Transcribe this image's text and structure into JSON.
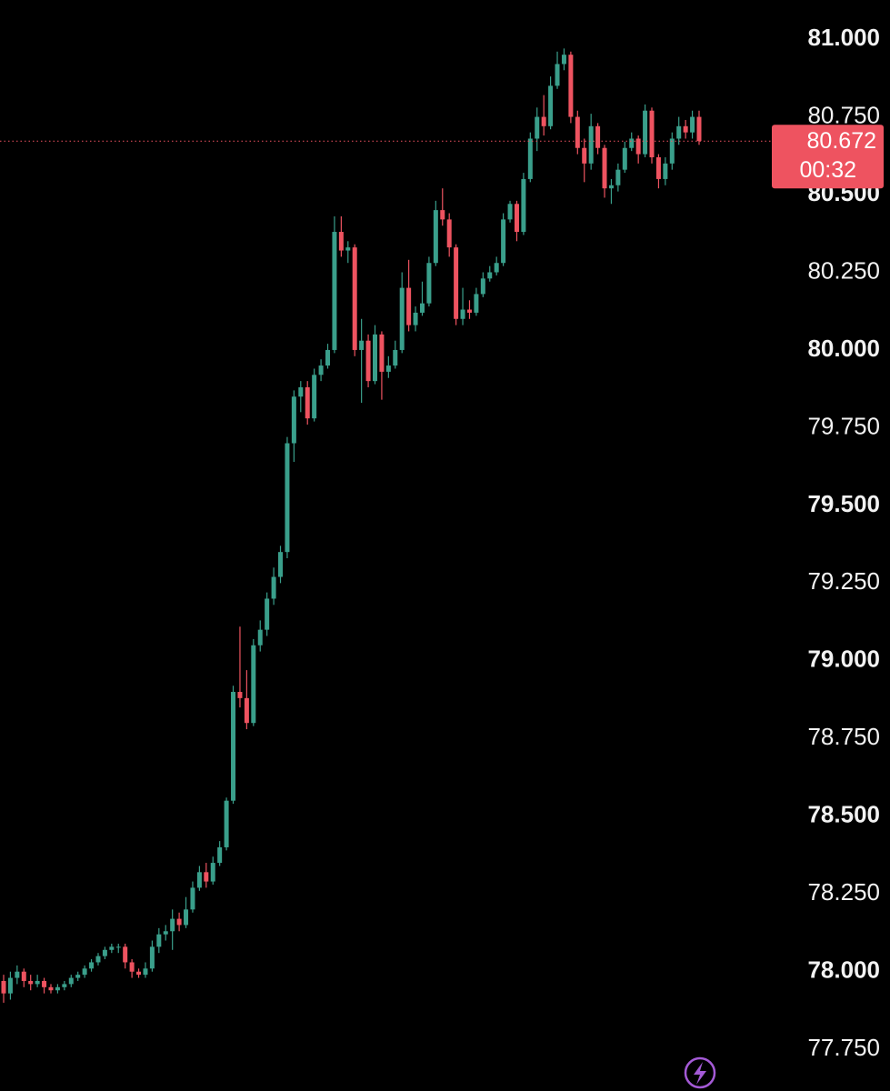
{
  "chart_data": {
    "type": "candlestick",
    "open": [
      77.97,
      77.93,
      77.98,
      78.0,
      77.97,
      77.96,
      77.97,
      77.95,
      77.94,
      77.95,
      77.96,
      77.98,
      77.99,
      78.01,
      78.03,
      78.05,
      78.07,
      78.08,
      78.08,
      78.03,
      78.0,
      77.99,
      78.01,
      78.08,
      78.12,
      78.13,
      78.17,
      78.15,
      78.2,
      78.27,
      78.32,
      78.29,
      78.35,
      78.4,
      78.55,
      78.9,
      78.88,
      78.8,
      79.05,
      79.1,
      79.2,
      79.27,
      79.35,
      79.7,
      79.85,
      79.88,
      79.78,
      79.92,
      79.95,
      80.0,
      80.38,
      80.32,
      80.33,
      80.0,
      80.03,
      79.9,
      80.05,
      79.93,
      79.95,
      80.0,
      80.2,
      80.08,
      80.12,
      80.15,
      80.28,
      80.45,
      80.42,
      80.33,
      80.1,
      80.13,
      80.12,
      80.18,
      80.23,
      80.25,
      80.28,
      80.42,
      80.47,
      80.38,
      80.55,
      80.68,
      80.75,
      80.72,
      80.85,
      80.92,
      80.95,
      80.75,
      80.65,
      80.6,
      80.72,
      80.65,
      80.52,
      80.53,
      80.58,
      80.65,
      80.68,
      80.63,
      80.77,
      80.62,
      80.55,
      80.6,
      80.68,
      80.72,
      80.7,
      80.75
    ],
    "high": [
      77.99,
      78.0,
      78.02,
      78.01,
      77.99,
      77.99,
      77.98,
      77.96,
      77.96,
      77.97,
      77.99,
      78.0,
      78.02,
      78.04,
      78.06,
      78.08,
      78.09,
      78.09,
      78.09,
      78.04,
      78.01,
      78.03,
      78.1,
      78.14,
      78.15,
      78.2,
      78.19,
      78.24,
      78.29,
      78.34,
      78.35,
      78.37,
      78.42,
      78.56,
      78.92,
      79.11,
      78.97,
      79.07,
      79.13,
      79.22,
      79.3,
      79.37,
      79.72,
      79.87,
      79.9,
      79.9,
      79.94,
      79.97,
      80.02,
      80.43,
      80.43,
      80.35,
      80.34,
      80.1,
      80.05,
      80.08,
      80.06,
      79.98,
      80.03,
      80.25,
      80.29,
      80.14,
      80.22,
      80.3,
      80.48,
      80.52,
      80.44,
      80.34,
      80.2,
      80.16,
      80.2,
      80.25,
      80.27,
      80.3,
      80.44,
      80.48,
      80.48,
      80.57,
      80.7,
      80.78,
      80.82,
      80.88,
      80.96,
      80.97,
      80.96,
      80.77,
      80.68,
      80.76,
      80.73,
      80.66,
      80.55,
      80.6,
      80.67,
      80.7,
      80.69,
      80.79,
      80.78,
      80.63,
      80.62,
      80.7,
      80.75,
      80.74,
      80.77,
      80.77
    ],
    "low": [
      77.9,
      77.91,
      77.96,
      77.95,
      77.94,
      77.95,
      77.93,
      77.93,
      77.93,
      77.94,
      77.95,
      77.97,
      77.98,
      78.0,
      78.02,
      78.04,
      78.06,
      78.06,
      78.01,
      77.98,
      77.98,
      77.98,
      78.0,
      78.06,
      78.1,
      78.07,
      78.13,
      78.14,
      78.19,
      78.26,
      78.27,
      78.28,
      78.34,
      78.39,
      78.54,
      78.85,
      78.78,
      78.79,
      79.03,
      79.08,
      79.18,
      79.25,
      79.33,
      79.64,
      79.8,
      79.76,
      79.77,
      79.9,
      79.94,
      79.99,
      80.3,
      80.28,
      79.98,
      79.83,
      79.88,
      79.89,
      79.84,
      79.91,
      79.94,
      79.99,
      80.06,
      80.06,
      80.11,
      80.14,
      80.27,
      80.4,
      80.3,
      80.08,
      80.08,
      80.1,
      80.11,
      80.17,
      80.22,
      80.24,
      80.27,
      80.41,
      80.35,
      80.37,
      80.54,
      80.64,
      80.69,
      80.71,
      80.84,
      80.9,
      80.73,
      80.63,
      80.54,
      80.58,
      80.63,
      80.49,
      80.47,
      80.51,
      80.57,
      80.64,
      80.6,
      80.62,
      80.6,
      80.52,
      80.53,
      80.58,
      80.66,
      80.68,
      80.68,
      80.66
    ],
    "close": [
      77.93,
      77.98,
      78.0,
      77.97,
      77.96,
      77.97,
      77.95,
      77.94,
      77.95,
      77.96,
      77.98,
      77.99,
      78.01,
      78.03,
      78.05,
      78.07,
      78.08,
      78.08,
      78.03,
      78.0,
      77.99,
      78.01,
      78.08,
      78.12,
      78.13,
      78.17,
      78.15,
      78.2,
      78.27,
      78.32,
      78.29,
      78.35,
      78.4,
      78.55,
      78.9,
      78.88,
      78.8,
      79.05,
      79.1,
      79.2,
      79.27,
      79.35,
      79.7,
      79.85,
      79.88,
      79.78,
      79.92,
      79.95,
      80.0,
      80.38,
      80.32,
      80.33,
      80.0,
      80.03,
      79.9,
      80.05,
      79.93,
      79.95,
      80.0,
      80.2,
      80.08,
      80.12,
      80.15,
      80.28,
      80.45,
      80.42,
      80.33,
      80.1,
      80.13,
      80.12,
      80.18,
      80.23,
      80.25,
      80.28,
      80.42,
      80.47,
      80.38,
      80.55,
      80.68,
      80.75,
      80.72,
      80.85,
      80.92,
      80.95,
      80.75,
      80.65,
      80.6,
      80.72,
      80.65,
      80.52,
      80.53,
      80.58,
      80.65,
      80.68,
      80.63,
      80.77,
      80.62,
      80.55,
      80.6,
      80.68,
      80.72,
      80.7,
      80.75,
      80.672
    ],
    "up_color": "#3a9f8b",
    "down_color": "#ee5360",
    "ylim": [
      77.616,
      81.126
    ],
    "yticks": [
      {
        "value": 77.75,
        "label": "77.750"
      },
      {
        "value": 78,
        "label": "78.000"
      },
      {
        "value": 78.25,
        "label": "78.250"
      },
      {
        "value": 78.5,
        "label": "78.500"
      },
      {
        "value": 78.75,
        "label": "78.750"
      },
      {
        "value": 79,
        "label": "79.000"
      },
      {
        "value": 79.25,
        "label": "79.250"
      },
      {
        "value": 79.5,
        "label": "79.500"
      },
      {
        "value": 79.75,
        "label": "79.750"
      },
      {
        "value": 80,
        "label": "80.000"
      },
      {
        "value": 80.25,
        "label": "80.250"
      },
      {
        "value": 80.5,
        "label": "80.500"
      },
      {
        "value": 80.75,
        "label": "80.750"
      },
      {
        "value": 81,
        "label": "81.000"
      }
    ],
    "current_price": 80.672,
    "countdown": "00:32"
  }
}
